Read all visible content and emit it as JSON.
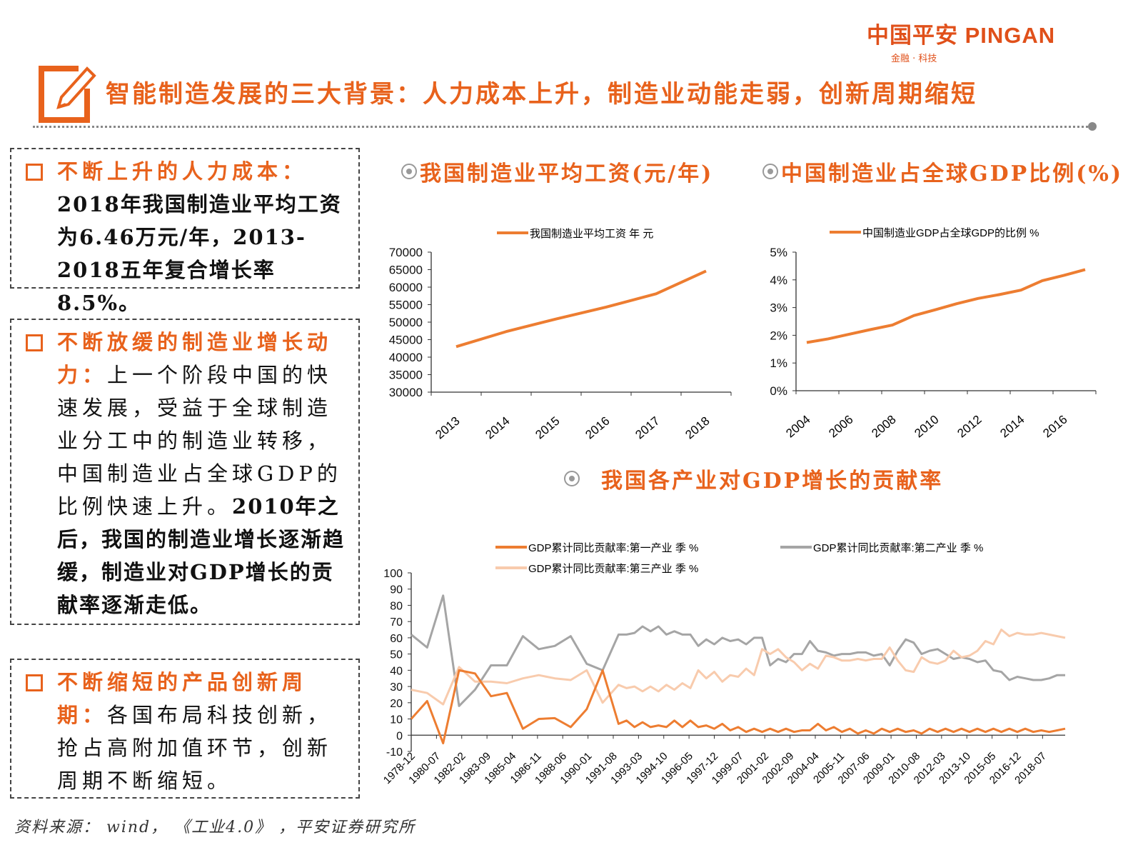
{
  "logo": {
    "main": "中国平安 PINGAN",
    "sub": "金融 · 科技"
  },
  "header": {
    "title": "智能制造发展的三大背景：人力成本上升，制造业动能走弱，创新周期缩短"
  },
  "boxes": [
    {
      "heading": "不断上升的人力成本：",
      "bold": "2018年我国制造业平均工资为6.46万元/年，2013-2018五年复合增长率8.5%。",
      "normal": ""
    },
    {
      "heading": "不断放缓的制造业增长动力：",
      "normal": "上一个阶段中国的快速发展，受益于全球制造业分工中的制造业转移，中国制造业占全球GDP的比例快速上升。",
      "bold": "2010年之后，我国的制造业增长逐渐趋缓，制造业对GDP增长的贡献率逐渐走低。"
    },
    {
      "heading": "不断缩短的产品创新周期：",
      "normal": "各国布局科技创新，抢占高附加值环节，创新周期不断缩短。",
      "bold": ""
    }
  ],
  "section_titles": {
    "wage": "我国制造业平均工资(元/年)",
    "share": "中国制造业占全球GDP比例(%)",
    "contrib": "我国各产业对GDP增长的贡献率"
  },
  "source": "资料来源： wind， 《工业4.0》 ，平安证券研究所",
  "colors": {
    "accent": "#E8621C",
    "line1": "#ED7D31",
    "line2": "#A5A5A5",
    "line3": "#F8CBAD"
  },
  "chart_data": [
    {
      "type": "line",
      "legend": "我国制造业平均工资 年 元",
      "legend_position": "top",
      "categories": [
        "2013",
        "2014",
        "2015",
        "2016",
        "2017",
        "2018"
      ],
      "series": [
        {
          "name": "我国制造业平均工资 年 元",
          "values": [
            43000,
            47300,
            50900,
            54300,
            58100,
            64600
          ]
        }
      ],
      "ylim": [
        30000,
        70000
      ],
      "yticks": [
        "30000",
        "35000",
        "40000",
        "45000",
        "50000",
        "55000",
        "60000",
        "65000",
        "70000"
      ],
      "grid": false
    },
    {
      "type": "line",
      "legend": "中国制造业GDP占全球GDP的比例 %",
      "legend_position": "top",
      "categories": [
        "2004",
        "2005",
        "2006",
        "2007",
        "2008",
        "2009",
        "2010",
        "2011",
        "2012",
        "2013",
        "2014",
        "2015",
        "2016",
        "2017"
      ],
      "xtick_labels": [
        "2004",
        "2006",
        "2008",
        "2010",
        "2012",
        "2014",
        "2016"
      ],
      "series": [
        {
          "name": "中国制造业GDP占全球GDP的比例 %",
          "values": [
            1.74,
            1.87,
            2.04,
            2.21,
            2.37,
            2.71,
            2.92,
            3.14,
            3.33,
            3.47,
            3.63,
            3.97,
            4.16,
            4.37
          ]
        }
      ],
      "ylim": [
        0,
        5
      ],
      "yticks": [
        "0%",
        "1%",
        "2%",
        "3%",
        "4%",
        "5%"
      ],
      "grid": false
    },
    {
      "type": "line",
      "legend_position": "top",
      "x_range": [
        "1978-12",
        "2019-12"
      ],
      "xtick_labels": [
        "1978-12",
        "1980-07",
        "1982-02",
        "1983-09",
        "1985-04",
        "1986-11",
        "1988-06",
        "1990-01",
        "1991-08",
        "1993-03",
        "1994-10",
        "1996-05",
        "1997-12",
        "1999-07",
        "2001-02",
        "2002-09",
        "2004-04",
        "2005-11",
        "2007-06",
        "2009-01",
        "2010-08",
        "2012-03",
        "2013-10",
        "2015-05",
        "2016-12",
        "2018-07"
      ],
      "ylim": [
        -10,
        100
      ],
      "yticks": [
        "-10",
        "0",
        "10",
        "20",
        "30",
        "40",
        "50",
        "60",
        "70",
        "80",
        "90",
        "100"
      ],
      "grid": false,
      "x_annual": [
        "1978-12",
        "1979-12",
        "1980-12",
        "1981-12",
        "1982-12",
        "1983-12",
        "1984-12",
        "1985-12",
        "1986-12",
        "1987-12",
        "1988-12",
        "1989-12",
        "1990-12",
        "1991-12"
      ],
      "x_halfyear_years": [
        1992,
        2019
      ],
      "series": [
        {
          "name": "GDP累计同比贡献率:第一产业 季 %",
          "annual": [
            10,
            21,
            -5,
            40,
            38,
            24,
            26,
            4,
            10,
            10.5,
            5,
            16,
            40,
            7
          ],
          "halfyear": [
            9,
            5,
            8,
            5,
            6,
            5,
            9,
            5,
            9,
            5,
            6,
            4,
            7,
            3,
            5,
            2,
            4,
            2,
            4,
            2,
            4,
            2,
            3,
            3,
            7,
            3,
            5,
            2,
            4,
            1,
            3,
            1,
            4,
            2,
            4,
            2,
            3,
            1,
            4,
            2,
            4,
            2,
            4,
            2,
            4,
            2,
            4,
            2,
            4,
            2,
            4,
            2,
            3,
            2,
            3,
            4
          ]
        },
        {
          "name": "GDP累计同比贡献率:第二产业 季 %",
          "annual": [
            62,
            54,
            86,
            18,
            28,
            43,
            43,
            61,
            53,
            55,
            61,
            44,
            40,
            62
          ],
          "halfyear": [
            62,
            63,
            67,
            64,
            67,
            62,
            64,
            62,
            62,
            55,
            59,
            56,
            60,
            58,
            59,
            56,
            60,
            60,
            43,
            47,
            45,
            50,
            50,
            58,
            52,
            51,
            49,
            50,
            50,
            51,
            51,
            49,
            50,
            43,
            52,
            59,
            57,
            50,
            52,
            53,
            50,
            47,
            48,
            47,
            45,
            46,
            40,
            39,
            34,
            36,
            35,
            34,
            34,
            35,
            37,
            37
          ]
        },
        {
          "name": "GDP累计同比贡献率:第三产业 季 %",
          "annual": [
            28,
            26,
            19,
            42,
            33,
            33,
            32,
            35,
            37,
            35,
            34,
            40,
            20,
            31
          ],
          "halfyear": [
            29,
            30,
            27,
            30,
            27,
            31,
            28,
            32,
            29,
            40,
            35,
            39,
            33,
            37,
            36,
            41,
            37,
            53,
            50,
            53,
            48,
            45,
            40,
            44,
            41,
            49,
            48,
            46,
            46,
            47,
            46,
            47,
            47,
            54,
            46,
            40,
            39,
            48,
            45,
            44,
            46,
            52,
            48,
            49,
            52,
            58,
            56,
            65,
            61,
            63,
            62,
            62,
            63,
            62,
            61,
            60
          ]
        }
      ]
    }
  ]
}
